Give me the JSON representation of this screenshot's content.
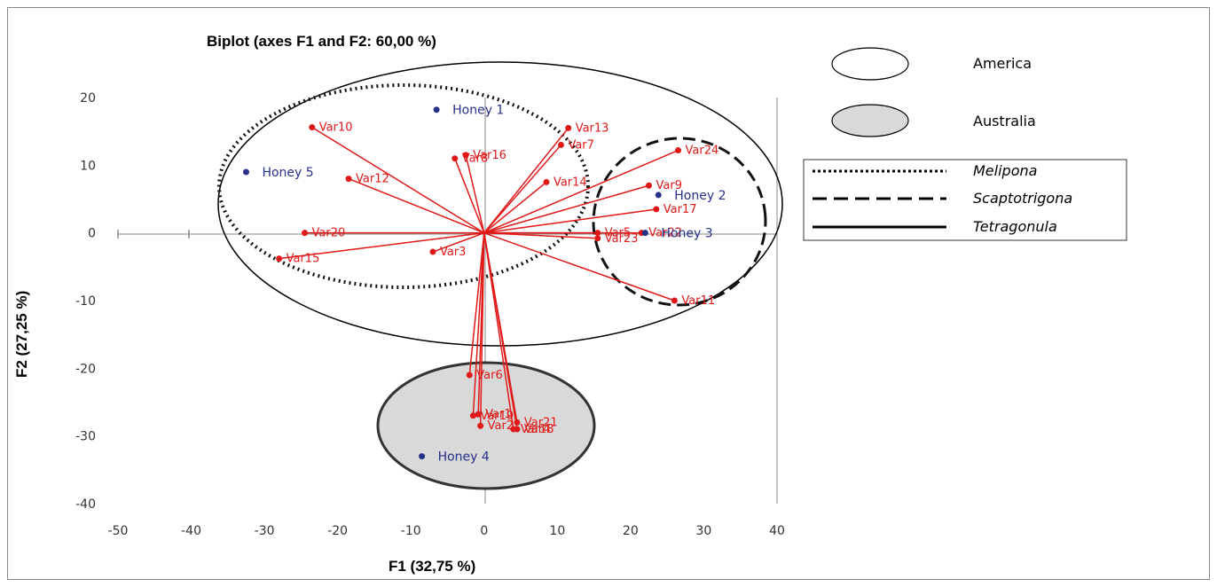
{
  "chart_data": {
    "type": "scatter",
    "title": "Biplot (axes F1 and F2: 60,00 %)",
    "xlabel": "F1 (32,75 %)",
    "ylabel": "F2 (27,25 %)",
    "xlim": [
      -50,
      40
    ],
    "ylim": [
      -40,
      20
    ],
    "x_ticks": [
      "-50",
      "-40",
      "-30",
      "-20",
      "-10",
      "0",
      "10",
      "20",
      "30",
      "40"
    ],
    "y_ticks": [
      "20",
      "10",
      "0",
      "-10",
      "-20",
      "-30",
      "-40"
    ],
    "observations": [
      {
        "name": "Honey 1",
        "x": -6.5,
        "y": 18.2
      },
      {
        "name": "Honey 2",
        "x": 23.8,
        "y": 5.6
      },
      {
        "name": "Honey 3",
        "x": 22.0,
        "y": 0.0
      },
      {
        "name": "Honey 4",
        "x": -8.5,
        "y": -33.0
      },
      {
        "name": "Honey 5",
        "x": -32.5,
        "y": 9.0
      }
    ],
    "variables": [
      {
        "name": "Var10",
        "x": -23.5,
        "y": 15.6
      },
      {
        "name": "Var12",
        "x": -18.5,
        "y": 8.0
      },
      {
        "name": "Var20",
        "x": -24.5,
        "y": 0.0
      },
      {
        "name": "Var15",
        "x": -28.0,
        "y": -3.8
      },
      {
        "name": "Var16",
        "x": -2.5,
        "y": 11.5
      },
      {
        "name": "Var8",
        "x": -4.0,
        "y": 11.0
      },
      {
        "name": "Var13",
        "x": 11.5,
        "y": 15.5
      },
      {
        "name": "Var7",
        "x": 10.5,
        "y": 13.0
      },
      {
        "name": "Var14",
        "x": 8.5,
        "y": 7.5
      },
      {
        "name": "Var24",
        "x": 26.5,
        "y": 12.2
      },
      {
        "name": "Var9",
        "x": 22.5,
        "y": 7.0
      },
      {
        "name": "Var17",
        "x": 23.5,
        "y": 3.5
      },
      {
        "name": "Var22",
        "x": 21.5,
        "y": 0.0
      },
      {
        "name": "Var5",
        "x": 15.5,
        "y": 0.0
      },
      {
        "name": "Var23",
        "x": 15.5,
        "y": -0.8
      },
      {
        "name": "Var11",
        "x": 26.0,
        "y": -10.0
      },
      {
        "name": "Var3",
        "x": -7.0,
        "y": -2.8
      },
      {
        "name": "Var6",
        "x": -2.0,
        "y": -21.0
      },
      {
        "name": "Var21",
        "x": 4.5,
        "y": -28.0
      },
      {
        "name": "Var18",
        "x": 4.0,
        "y": -29.0
      },
      {
        "name": "Var4",
        "x": 4.5,
        "y": -29.0
      },
      {
        "name": "Var19",
        "x": -1.5,
        "y": -27.0
      },
      {
        "name": "Var2",
        "x": -0.5,
        "y": -28.5
      },
      {
        "name": "Var1",
        "x": -0.8,
        "y": -26.8
      }
    ],
    "regions": [
      {
        "name": "America",
        "type": "ellipse",
        "fill": "none"
      },
      {
        "name": "Australia",
        "type": "ellipse",
        "fill": "#d9d9d9"
      },
      {
        "name": "Melipona",
        "line": "dotted"
      },
      {
        "name": "Scaptotrigona",
        "line": "dashed"
      },
      {
        "name": "Tetragonula",
        "line": "solid"
      }
    ],
    "colors": {
      "variables": "#e01818",
      "observations": "#27308a"
    }
  },
  "legend": {
    "america": "America",
    "australia": "Australia",
    "melipona": "Melipona",
    "scaptotrigona": "Scaptotrigona",
    "tetragonula": "Tetragonula"
  }
}
